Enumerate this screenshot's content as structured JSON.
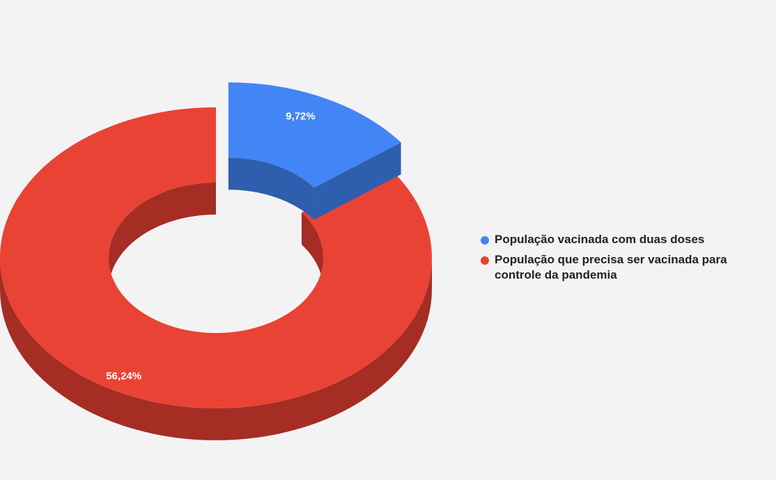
{
  "chart_data": {
    "type": "pie",
    "style": "3d-donut",
    "title": "",
    "legend_position": "right",
    "slices": [
      {
        "name": "População vacinada com duas doses",
        "value": 9.72,
        "label": "9,72%",
        "color": "#4285f4",
        "side_color": "#2d5fae",
        "exploded": true
      },
      {
        "name": "População que precisa ser vacinada para controle da pandemia",
        "value": 56.24,
        "label": "56,24%",
        "color": "#e94335",
        "side_color": "#a52d24",
        "exploded": false
      }
    ]
  },
  "legend": {
    "items": [
      {
        "label": "População vacinada com duas doses",
        "color": "#4285f4"
      },
      {
        "label": "População que precisa ser vacinada para controle da pandemia",
        "color": "#e94335"
      }
    ]
  }
}
